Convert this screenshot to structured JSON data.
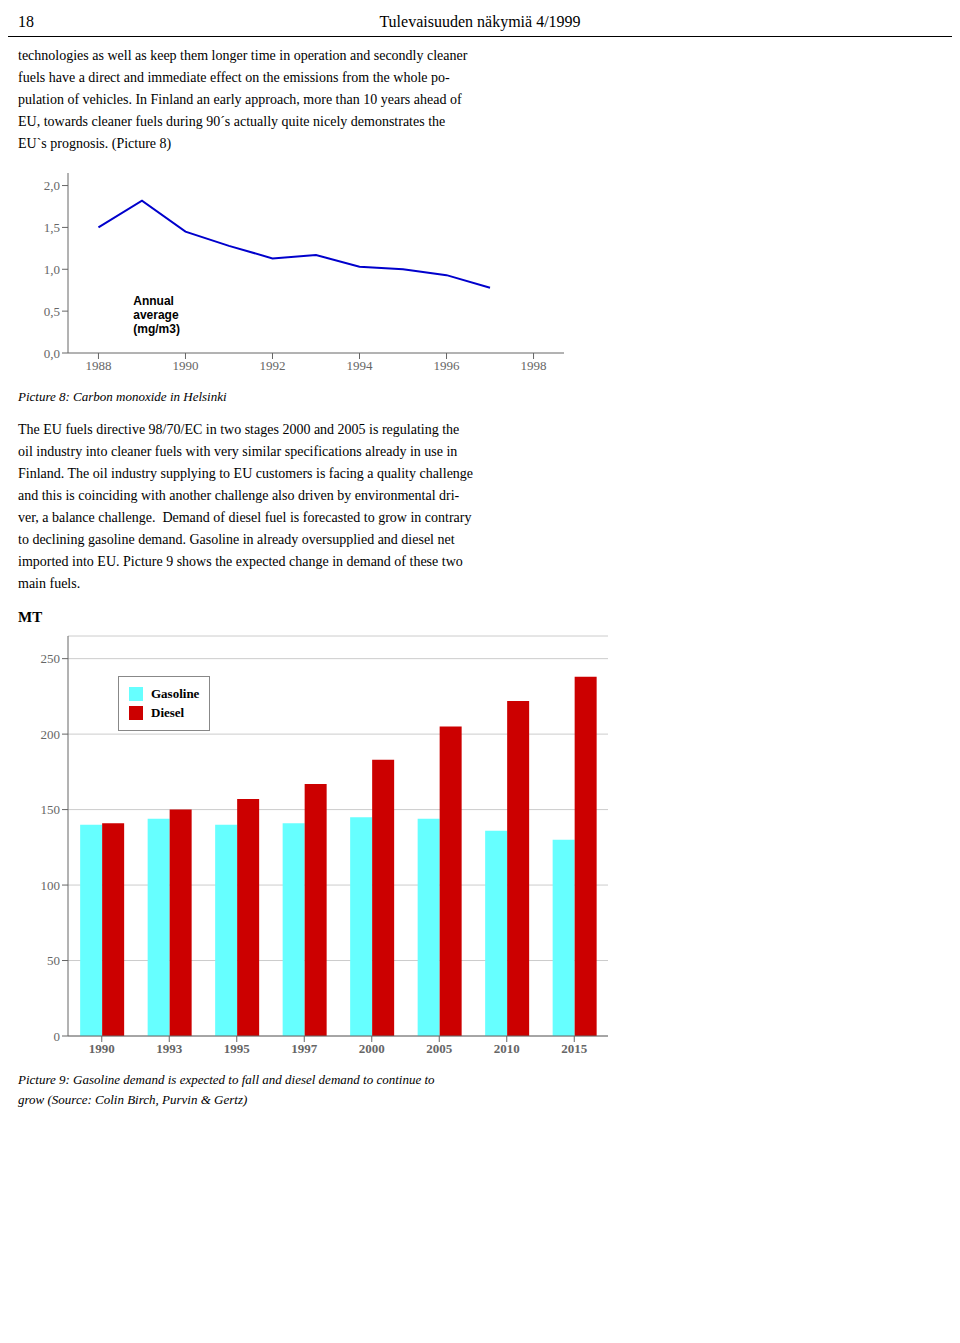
{
  "page_header": [
    "18",
    "Tulevaisuuden näkymiä 4/1999"
  ],
  "paragraphs": [
    [
      "technologies as well as keep them longer time in operation and secondly cleaner",
      "fuels have a direct and immediate effect on the emissions from the whole po-",
      "pulation of vehicles. In Finland an early approach, more than 10 years ahead of",
      "EU, towards cleaner fuels during 90´s actually quite nicely demonstrates the",
      "EU`s prognosis. (Picture 8)"
    ],
    [
      "The EU fuels directive 98/70/EC in two stages 2000 and 2005 is regulating the",
      "oil industry into cleaner fuels with very similar specifications already in use in",
      "Finland. The oil industry supplying to EU customers is facing a quality challenge",
      "and this is coinciding with another challenge also driven by environmental dri-",
      "ver, a balance challenge.  Demand of diesel fuel is forecasted to grow in contrary",
      "to declining gasoline demand. Gasoline in already oversupplied and diesel net",
      "imported into EU. Picture 9 shows the expected change in demand of these two",
      "main fuels."
    ]
  ],
  "chart_data": [
    {
      "type": "line",
      "title": "Picture 8: Carbon monoxide in Helsinki",
      "x": [
        1988,
        1989,
        1990,
        1991,
        1992,
        1993,
        1994,
        1995,
        1996,
        1997
      ],
      "values": [
        1.5,
        1.82,
        1.45,
        1.28,
        1.13,
        1.17,
        1.03,
        1.0,
        0.93,
        0.78
      ],
      "color": "#0000CC",
      "xlim": [
        1987.3,
        1998.7
      ],
      "xticks": [
        1988,
        1990,
        1992,
        1994,
        1996,
        1998
      ],
      "ylim": [
        0.0,
        2.15
      ],
      "yticks": [
        {
          "value": 0.0,
          "label": "0,0"
        },
        {
          "value": 0.5,
          "label": "0,5"
        },
        {
          "value": 1.0,
          "label": "1,0"
        },
        {
          "value": 1.5,
          "label": "1,5"
        },
        {
          "value": 2.0,
          "label": "2,0"
        }
      ],
      "annotations": [
        {
          "text": "Annual\naverage\n(mg/m3)",
          "x": 1988.8,
          "y": 0.72
        }
      ],
      "grid": false
    },
    {
      "type": "bar",
      "title": "Picture 9: Gasoline demand is expected to fall and diesel demand to continue to\ngrow (Source: Colin Birch, Purvin & Gertz)",
      "ylabel": "MT",
      "categories": [
        "1990",
        "1993",
        "1995",
        "1997",
        "2000",
        "2005",
        "2010",
        "2015"
      ],
      "series": [
        {
          "name": "Gasoline",
          "color": "#66FFFF",
          "values": [
            140,
            144,
            140,
            141,
            145,
            144,
            136,
            130
          ]
        },
        {
          "name": "Diesel",
          "color": "#CC0000",
          "values": [
            141,
            150,
            157,
            167,
            183,
            205,
            222,
            238
          ]
        }
      ],
      "ylim": [
        0,
        265
      ],
      "yticks": [
        0,
        50,
        100,
        150,
        200,
        250
      ],
      "grid": true,
      "legend": "upper left"
    }
  ]
}
